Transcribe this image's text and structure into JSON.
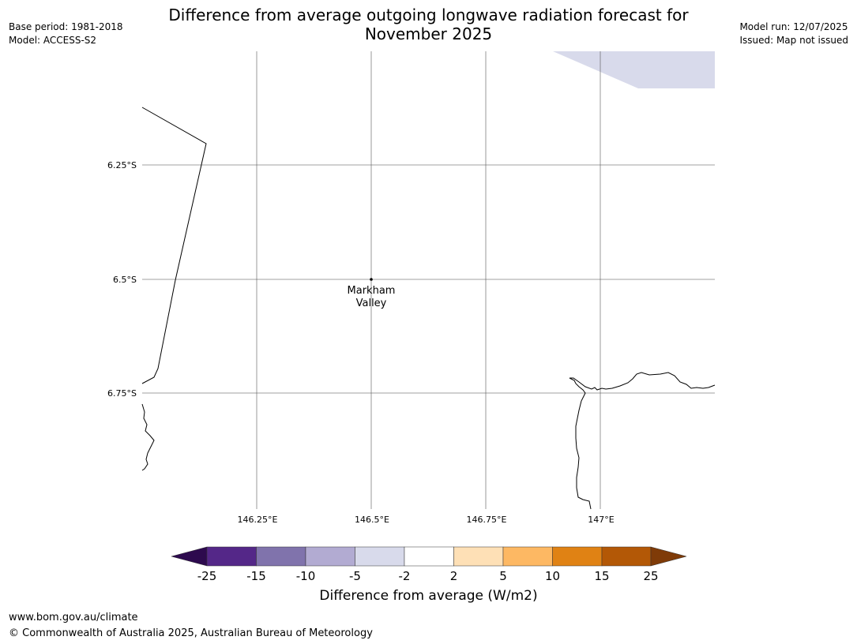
{
  "title_line1": "Difference from average outgoing longwave radiation forecast for",
  "title_line2": "November 2025",
  "base_period": "Base period: 1981-2018",
  "model": "Model: ACCESS-S2",
  "model_run": "Model run: 12/07/2025",
  "issued": "Issued: Map not issued",
  "map": {
    "lat_labels": [
      "6.25°S",
      "6.5°S",
      "6.75°S"
    ],
    "lon_labels": [
      "146.25°E",
      "146.5°E",
      "146.75°E",
      "147°E"
    ],
    "place_name_line1": "Markham",
    "place_name_line2": "Valley"
  },
  "colorbar": {
    "tick_labels": [
      "-25",
      "-15",
      "-10",
      "-5",
      "-2",
      "2",
      "5",
      "10",
      "15",
      "25"
    ],
    "colors": [
      "#2d0a4e",
      "#542788",
      "#8073ac",
      "#b2abd2",
      "#d8daeb",
      "#ffffff",
      "#fee0b6",
      "#fdb863",
      "#e08214",
      "#b35806",
      "#7f3b08"
    ],
    "label": "Difference from average (W/m2)"
  },
  "footer_url": "www.bom.gov.au/climate",
  "footer_copyright": "© Commonwealth of Australia 2025, Australian Bureau of Meteorology"
}
